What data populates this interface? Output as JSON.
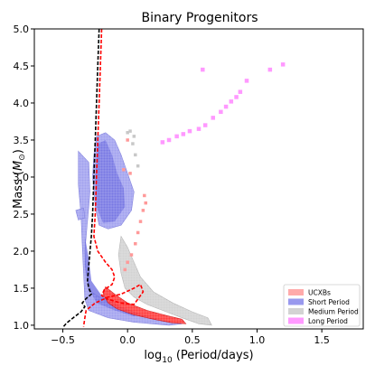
{
  "chart_data": {
    "type": "scatter",
    "title": "Binary Progenitors",
    "xlabel_prefix": "log",
    "xlabel_sub": "10",
    "xlabel_suffix": " (Period/days)",
    "ylabel_prefix": "Mass (",
    "ylabel_symbol": "M",
    "ylabel_sub": "⊙",
    "ylabel_suffix": ")",
    "xlim": [
      -0.72,
      1.82
    ],
    "ylim": [
      0.95,
      5.0
    ],
    "xticks": [
      -0.5,
      0.0,
      0.5,
      1.0,
      1.5
    ],
    "xtick_labels": [
      "−0.5",
      "0.0",
      "0.5",
      "1.0",
      "1.5"
    ],
    "yticks": [
      1.0,
      1.5,
      2.0,
      2.5,
      3.0,
      3.5,
      4.0,
      4.5,
      5.0
    ],
    "ytick_labels": [
      "1.0",
      "1.5",
      "2.0",
      "2.5",
      "3.0",
      "3.5",
      "4.0",
      "4.5",
      "5.0"
    ],
    "grid": false,
    "legend_position": "lower-right",
    "legend": [
      {
        "label": "UCXBs",
        "color": "#ffaaaa"
      },
      {
        "label": "Short Period",
        "color": "#9999ee"
      },
      {
        "label": "Medium Period",
        "color": "#d3d3d3"
      },
      {
        "label": "Long Period",
        "color": "#ff99ff"
      }
    ],
    "regions": [
      {
        "name": "Short Period",
        "fill": "#9999ee",
        "stroke": "#6f6fd8",
        "dense_fill": "#6a6ae0",
        "polygon": [
          [
            -0.24,
            3.55
          ],
          [
            -0.17,
            3.6
          ],
          [
            -0.1,
            3.5
          ],
          [
            -0.05,
            3.3
          ],
          [
            0.0,
            3.05
          ],
          [
            0.05,
            2.8
          ],
          [
            0.03,
            2.55
          ],
          [
            -0.05,
            2.35
          ],
          [
            -0.15,
            2.3
          ],
          [
            -0.22,
            2.35
          ],
          [
            -0.25,
            2.6
          ],
          [
            -0.27,
            3.0
          ],
          [
            -0.26,
            3.3
          ]
        ],
        "dense_polygon": [
          [
            -0.23,
            3.45
          ],
          [
            -0.17,
            3.5
          ],
          [
            -0.12,
            3.3
          ],
          [
            -0.08,
            3.05
          ],
          [
            -0.03,
            2.85
          ],
          [
            -0.02,
            2.6
          ],
          [
            -0.1,
            2.4
          ],
          [
            -0.19,
            2.38
          ],
          [
            -0.24,
            2.6
          ],
          [
            -0.25,
            3.0
          ]
        ]
      },
      {
        "name": "Short Period",
        "fill": "#9999ee",
        "stroke": "#6f6fd8",
        "dense_fill": "#6a6ae0",
        "polygon": [
          [
            -0.38,
            3.35
          ],
          [
            -0.3,
            3.2
          ],
          [
            -0.29,
            2.8
          ],
          [
            -0.31,
            2.4
          ],
          [
            -0.33,
            2.0
          ],
          [
            -0.32,
            1.7
          ],
          [
            -0.28,
            1.45
          ],
          [
            -0.15,
            1.3
          ],
          [
            0.0,
            1.2
          ],
          [
            0.15,
            1.12
          ],
          [
            0.3,
            1.05
          ],
          [
            0.42,
            1.02
          ],
          [
            0.32,
            1.0
          ],
          [
            0.05,
            1.04
          ],
          [
            -0.15,
            1.1
          ],
          [
            -0.3,
            1.2
          ],
          [
            -0.33,
            1.35
          ],
          [
            -0.34,
            1.7
          ],
          [
            -0.35,
            2.1
          ],
          [
            -0.36,
            2.5
          ],
          [
            -0.38,
            2.9
          ]
        ],
        "dense_polygon": [
          [
            -0.33,
            2.2
          ],
          [
            -0.3,
            1.9
          ],
          [
            -0.28,
            1.6
          ],
          [
            -0.2,
            1.4
          ],
          [
            -0.05,
            1.25
          ],
          [
            0.1,
            1.15
          ],
          [
            0.05,
            1.12
          ],
          [
            -0.1,
            1.2
          ],
          [
            -0.24,
            1.3
          ],
          [
            -0.3,
            1.5
          ],
          [
            -0.33,
            1.8
          ]
        ]
      },
      {
        "name": "Short Period",
        "fill": "#9999ee",
        "stroke": "#6f6fd8",
        "dense_fill": "#9999ee",
        "polygon": [
          [
            -0.4,
            2.55
          ],
          [
            -0.34,
            2.58
          ],
          [
            -0.33,
            2.45
          ],
          [
            -0.38,
            2.42
          ]
        ],
        "dense_polygon": []
      },
      {
        "name": "Medium Period",
        "fill": "#cfcfcf",
        "stroke": "#aaaaaa",
        "dense_fill": "#cfcfcf",
        "polygon": [
          [
            -0.05,
            2.2
          ],
          [
            0.0,
            2.05
          ],
          [
            0.05,
            1.85
          ],
          [
            0.1,
            1.65
          ],
          [
            0.2,
            1.45
          ],
          [
            0.35,
            1.3
          ],
          [
            0.5,
            1.18
          ],
          [
            0.62,
            1.1
          ],
          [
            0.65,
            1.0
          ],
          [
            0.55,
            1.02
          ],
          [
            0.42,
            1.1
          ],
          [
            0.3,
            1.18
          ],
          [
            0.15,
            1.28
          ],
          [
            0.05,
            1.38
          ],
          [
            -0.02,
            1.5
          ],
          [
            -0.05,
            1.7
          ],
          [
            -0.07,
            1.95
          ]
        ],
        "dense_polygon": []
      },
      {
        "name": "UCXBs",
        "fill": "#ff2a2a",
        "stroke": "#cc0000",
        "dense_fill": "#ff2a2a",
        "polygon": [
          [
            -0.17,
            1.52
          ],
          [
            -0.1,
            1.42
          ],
          [
            0.0,
            1.3
          ],
          [
            0.15,
            1.2
          ],
          [
            0.3,
            1.13
          ],
          [
            0.42,
            1.08
          ],
          [
            0.45,
            1.02
          ],
          [
            0.35,
            1.03
          ],
          [
            0.2,
            1.08
          ],
          [
            0.05,
            1.14
          ],
          [
            -0.08,
            1.22
          ],
          [
            -0.15,
            1.3
          ],
          [
            -0.19,
            1.42
          ]
        ],
        "dense_polygon": []
      }
    ],
    "ucxb_points": [
      {
        "x": -0.03,
        "y": 3.1
      },
      {
        "x": 0.12,
        "y": 2.55
      },
      {
        "x": 0.14,
        "y": 2.65
      },
      {
        "x": 0.13,
        "y": 2.75
      },
      {
        "x": 0.1,
        "y": 2.4
      },
      {
        "x": 0.08,
        "y": 2.25
      },
      {
        "x": 0.06,
        "y": 2.1
      },
      {
        "x": 0.03,
        "y": 1.95
      },
      {
        "x": 0.0,
        "y": 1.85
      },
      {
        "x": -0.02,
        "y": 1.75
      },
      {
        "x": 0.02,
        "y": 3.05
      },
      {
        "x": 0.0,
        "y": 3.5
      }
    ],
    "grey_points": [
      {
        "x": 0.02,
        "y": 3.62
      },
      {
        "x": 0.05,
        "y": 3.55
      },
      {
        "x": 0.04,
        "y": 3.45
      },
      {
        "x": 0.06,
        "y": 3.3
      },
      {
        "x": 0.08,
        "y": 3.15
      },
      {
        "x": 0.0,
        "y": 3.6
      }
    ],
    "long_period_points": [
      {
        "x": 0.27,
        "y": 3.47
      },
      {
        "x": 0.32,
        "y": 3.5
      },
      {
        "x": 0.38,
        "y": 3.55
      },
      {
        "x": 0.43,
        "y": 3.58
      },
      {
        "x": 0.48,
        "y": 3.62
      },
      {
        "x": 0.55,
        "y": 3.65
      },
      {
        "x": 0.6,
        "y": 3.7
      },
      {
        "x": 0.66,
        "y": 3.8
      },
      {
        "x": 0.72,
        "y": 3.88
      },
      {
        "x": 0.76,
        "y": 3.95
      },
      {
        "x": 0.8,
        "y": 4.02
      },
      {
        "x": 0.84,
        "y": 4.08
      },
      {
        "x": 0.87,
        "y": 4.15
      },
      {
        "x": 0.92,
        "y": 4.3
      },
      {
        "x": 0.58,
        "y": 4.45
      },
      {
        "x": 1.1,
        "y": 4.45
      },
      {
        "x": 1.2,
        "y": 4.52
      }
    ],
    "lines": [
      {
        "color": "#ff0000",
        "dash": "4,2",
        "points": [
          [
            -0.2,
            5.0
          ],
          [
            -0.21,
            4.5
          ],
          [
            -0.22,
            4.0
          ],
          [
            -0.23,
            3.5
          ],
          [
            -0.24,
            3.0
          ],
          [
            -0.25,
            2.5
          ],
          [
            -0.26,
            2.2
          ],
          [
            -0.23,
            2.0
          ],
          [
            -0.17,
            1.85
          ],
          [
            -0.12,
            1.75
          ],
          [
            -0.1,
            1.65
          ],
          [
            -0.12,
            1.55
          ],
          [
            -0.18,
            1.48
          ],
          [
            -0.2,
            1.4
          ],
          [
            -0.15,
            1.35
          ],
          [
            -0.05,
            1.3
          ],
          [
            0.05,
            1.28
          ],
          [
            0.12,
            1.45
          ],
          [
            0.1,
            1.55
          ],
          [
            0.05,
            1.5
          ],
          [
            -0.05,
            1.42
          ],
          [
            -0.15,
            1.38
          ],
          [
            -0.25,
            1.3
          ],
          [
            -0.32,
            1.2
          ],
          [
            -0.33,
            1.1
          ],
          [
            -0.34,
            0.98
          ]
        ]
      },
      {
        "color": "#000000",
        "dash": "4,2",
        "points": [
          [
            -0.22,
            5.0
          ],
          [
            -0.23,
            4.5
          ],
          [
            -0.24,
            4.0
          ],
          [
            -0.25,
            3.5
          ],
          [
            -0.26,
            3.0
          ],
          [
            -0.27,
            2.5
          ],
          [
            -0.28,
            2.2
          ],
          [
            -0.29,
            2.0
          ],
          [
            -0.3,
            1.8
          ],
          [
            -0.31,
            1.6
          ],
          [
            -0.3,
            1.5
          ],
          [
            -0.28,
            1.42
          ],
          [
            -0.32,
            1.36
          ],
          [
            -0.35,
            1.3
          ],
          [
            -0.33,
            1.25
          ],
          [
            -0.36,
            1.18
          ],
          [
            -0.42,
            1.1
          ],
          [
            -0.47,
            1.03
          ],
          [
            -0.5,
            0.97
          ]
        ]
      }
    ]
  }
}
